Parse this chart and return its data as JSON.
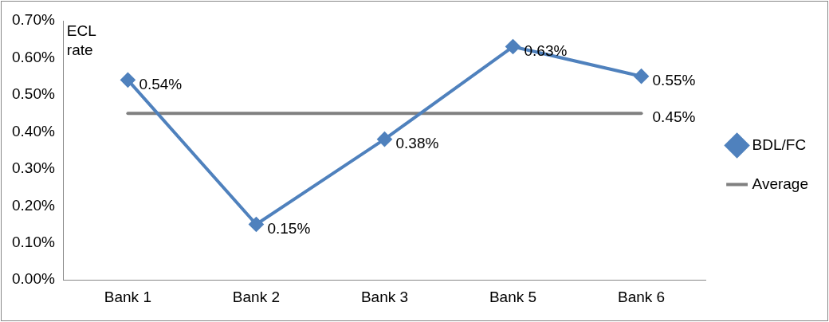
{
  "chart_data": {
    "type": "line",
    "ylabel": "ECL rate",
    "categories": [
      "Bank 1",
      "Bank 2",
      "Bank 3",
      "Bank 5",
      "Bank 6"
    ],
    "series": [
      {
        "name": "BDL/FC",
        "color": "#4f81bd",
        "marker": "diamond",
        "values": [
          0.54,
          0.15,
          0.38,
          0.63,
          0.55
        ],
        "value_labels": [
          "0.54%",
          "0.15%",
          "0.38%",
          "0.63%",
          "0.55%"
        ]
      },
      {
        "name": "Average",
        "color": "#808080",
        "marker": "none",
        "values": [
          0.45,
          0.45,
          0.45,
          0.45,
          0.45
        ],
        "value_labels": [
          null,
          null,
          null,
          null,
          "0.45%"
        ]
      }
    ],
    "ylim": [
      0,
      0.7
    ],
    "yticks": [
      {
        "value": 0,
        "label": "0.00%"
      },
      {
        "value": 0.1,
        "label": "0.10%"
      },
      {
        "value": 0.2,
        "label": "0.20%"
      },
      {
        "value": 0.3,
        "label": "0.30%"
      },
      {
        "value": 0.4,
        "label": "0.40%"
      },
      {
        "value": 0.5,
        "label": "0.50%"
      },
      {
        "value": 0.6,
        "label": "0.60%"
      },
      {
        "value": 0.7,
        "label": "0.70%"
      }
    ],
    "grid": false,
    "legend": "right"
  }
}
